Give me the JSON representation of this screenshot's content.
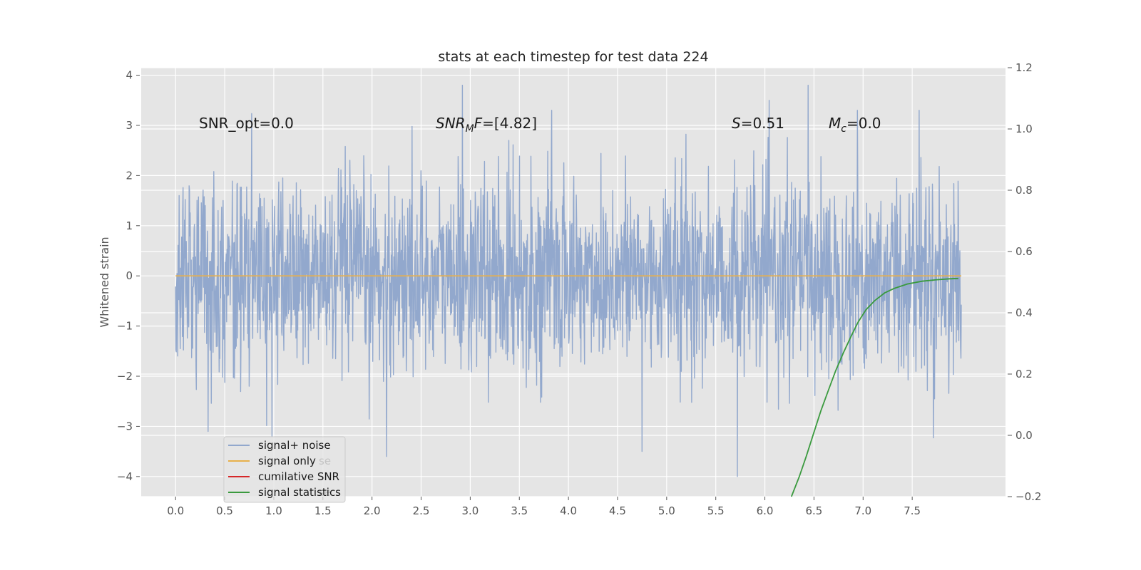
{
  "chart_data": {
    "type": "line",
    "title": "stats at each timestep for test data 224",
    "ylabel": "Whitened strain",
    "xlim": [
      -0.35,
      8.45
    ],
    "ylim": [
      -4.4,
      4.15
    ],
    "y2lim": [
      -0.2,
      1.2
    ],
    "xticks": [
      0.0,
      0.5,
      1.0,
      1.5,
      2.0,
      2.5,
      3.0,
      3.5,
      4.0,
      4.5,
      5.0,
      5.5,
      6.0,
      6.5,
      7.0,
      7.5
    ],
    "xtick_labels": [
      "0.0",
      "0.5",
      "1.0",
      "1.5",
      "2.0",
      "2.5",
      "3.0",
      "3.5",
      "4.0",
      "4.5",
      "5.0",
      "5.5",
      "6.0",
      "6.5",
      "7.0",
      "7.5"
    ],
    "yticks": [
      -4,
      -3,
      -2,
      -1,
      0,
      1,
      2,
      3,
      4
    ],
    "ytick_labels": [
      "−4",
      "−3",
      "−2",
      "−1",
      "0",
      "1",
      "2",
      "3",
      "4"
    ],
    "y2ticks": [
      -0.2,
      0.0,
      0.2,
      0.4,
      0.6,
      0.8,
      1.0,
      1.2
    ],
    "y2tick_labels": [
      "−0.2",
      "0.0",
      "0.2",
      "0.4",
      "0.6",
      "0.8",
      "1.0",
      "1.2"
    ],
    "grid": true,
    "legend_position": "lower-left",
    "series": [
      {
        "name": "signal+ noise",
        "color": "#92a8cd",
        "axis": "left",
        "x_range": [
          0.0,
          8.0
        ],
        "envelope": {
          "typical_amplitude": 1.0,
          "peak_max": 3.8,
          "peak_min": -4.0
        },
        "notable_peaks": [
          {
            "x": 2.92,
            "y": 3.8
          },
          {
            "x": 6.44,
            "y": 3.8
          },
          {
            "x": 3.83,
            "y": 3.3
          },
          {
            "x": 7.57,
            "y": 3.3
          },
          {
            "x": 6.94,
            "y": 3.3
          },
          {
            "x": 0.98,
            "y": -3.2
          },
          {
            "x": 2.15,
            "y": -3.6
          },
          {
            "x": 4.75,
            "y": -3.5
          },
          {
            "x": 5.72,
            "y": -4.0
          },
          {
            "x": 0.33,
            "y": -3.1
          }
        ]
      },
      {
        "name": "signal only",
        "color": "#e8b04b",
        "axis": "left",
        "x": [
          0.0,
          8.0
        ],
        "y": [
          0.0,
          0.0
        ]
      },
      {
        "name": "cumilative SNR",
        "color": "#d62728",
        "axis": "left",
        "x": [],
        "y": []
      },
      {
        "name": "signal statistics",
        "color": "#3a9a3e",
        "axis": "right",
        "x": [
          6.27,
          6.35,
          6.42,
          6.5,
          6.57,
          6.65,
          6.72,
          6.8,
          6.88,
          6.95,
          7.03,
          7.12,
          7.22,
          7.32,
          7.45,
          7.6,
          7.75,
          7.88,
          7.97
        ],
        "y": [
          -0.2,
          -0.135,
          -0.07,
          0.01,
          0.08,
          0.15,
          0.21,
          0.27,
          0.325,
          0.37,
          0.41,
          0.44,
          0.465,
          0.48,
          0.494,
          0.503,
          0.508,
          0.511,
          0.512
        ]
      }
    ],
    "annotations": [
      {
        "id": "snr-opt",
        "x": 0.2,
        "y": 3.0,
        "text": "SNR_opt=0.0"
      },
      {
        "id": "snr-mf",
        "x": 2.6,
        "y": 3.0,
        "text": "SNR_MF=[4.82]"
      },
      {
        "id": "s-stat",
        "x": 5.6,
        "y": 3.0,
        "text": "S=0.51"
      },
      {
        "id": "mc",
        "x": 6.6,
        "y": 3.0,
        "text": "M_c=0.0"
      }
    ]
  },
  "legend": {
    "items": [
      "signal+ noise",
      "signal only",
      "cumilative SNR",
      "signal statistics"
    ],
    "ghost_items": [
      "se",
      "se"
    ]
  },
  "colors": {
    "figure_bg": "#ffffff",
    "axes_bg": "#e5e5e5",
    "grid": "#ffffff",
    "tick": "#555555"
  }
}
